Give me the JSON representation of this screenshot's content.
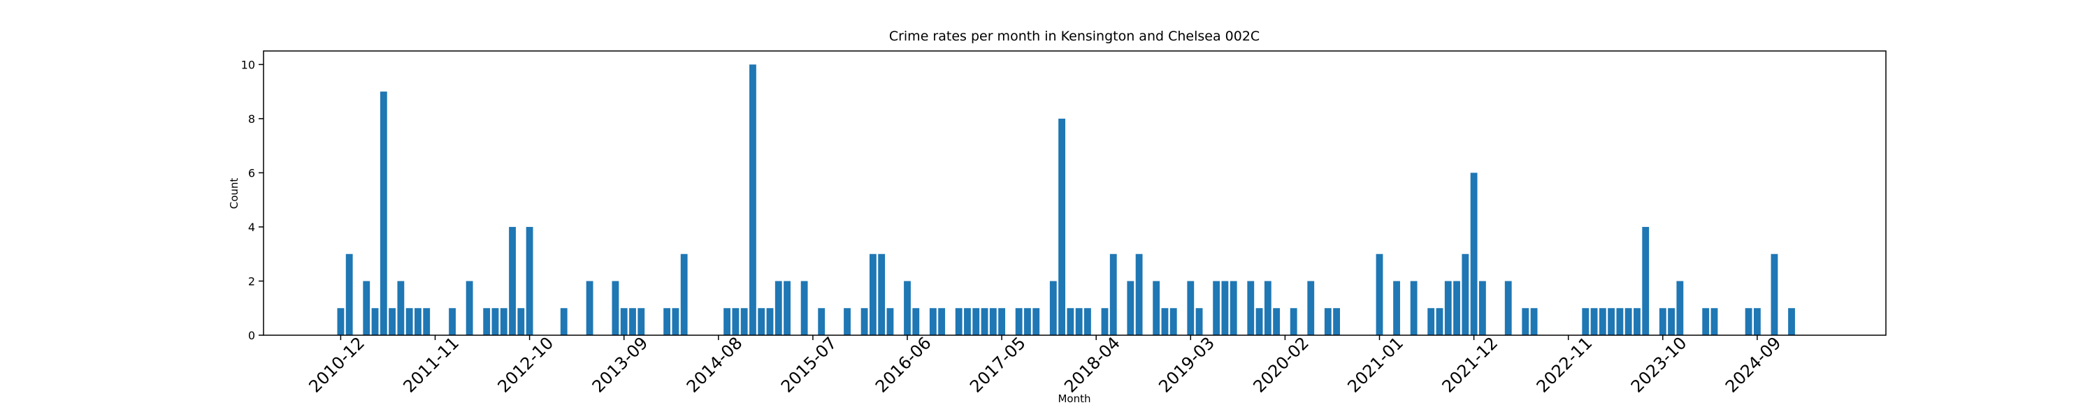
{
  "chart_data": {
    "type": "bar",
    "title": "Crime rates per month in Kensington and Chelsea 002C",
    "x_label": "Month",
    "y_label": "Count",
    "categories": [
      "2010-12",
      null,
      null,
      null,
      null,
      null,
      null,
      null,
      null,
      null,
      null,
      "2011-11",
      null,
      null,
      null,
      null,
      null,
      null,
      null,
      null,
      null,
      null,
      "2012-10",
      null,
      null,
      null,
      null,
      null,
      null,
      null,
      null,
      null,
      null,
      "2013-09",
      null,
      null,
      null,
      null,
      null,
      null,
      null,
      null,
      null,
      null,
      "2014-08",
      null,
      null,
      null,
      null,
      null,
      null,
      null,
      null,
      null,
      null,
      "2015-07",
      null,
      null,
      null,
      null,
      null,
      null,
      null,
      null,
      null,
      null,
      "2016-06",
      null,
      null,
      null,
      null,
      null,
      null,
      null,
      null,
      null,
      null,
      "2017-05",
      null,
      null,
      null,
      null,
      null,
      null,
      null,
      null,
      null,
      null,
      "2018-04",
      null,
      null,
      null,
      null,
      null,
      null,
      null,
      null,
      null,
      null,
      "2019-03",
      null,
      null,
      null,
      null,
      null,
      null,
      null,
      null,
      null,
      null,
      "2020-02",
      null,
      null,
      null,
      null,
      null,
      null,
      null,
      null,
      null,
      null,
      "2021-01",
      null,
      null,
      null,
      null,
      null,
      null,
      null,
      null,
      null,
      null,
      "2021-12",
      null,
      null,
      null,
      null,
      null,
      null,
      null,
      null,
      null,
      null,
      "2022-11",
      null,
      null,
      null,
      null,
      null,
      null,
      null,
      null,
      null,
      null,
      "2023-10",
      null,
      null,
      null,
      null,
      null,
      null,
      null,
      null,
      null,
      null,
      "2024-09",
      null,
      null,
      null,
      null,
      null,
      null
    ],
    "values": [
      1,
      3,
      0,
      2,
      1,
      9,
      1,
      2,
      1,
      1,
      1,
      0,
      0,
      1,
      0,
      2,
      0,
      1,
      1,
      1,
      4,
      1,
      4,
      0,
      0,
      0,
      1,
      0,
      0,
      2,
      0,
      0,
      2,
      1,
      1,
      1,
      0,
      0,
      1,
      1,
      3,
      0,
      0,
      0,
      0,
      1,
      1,
      1,
      10,
      1,
      1,
      2,
      2,
      0,
      2,
      0,
      1,
      0,
      0,
      1,
      0,
      1,
      3,
      3,
      1,
      0,
      2,
      1,
      0,
      1,
      1,
      0,
      1,
      1,
      1,
      1,
      1,
      1,
      0,
      1,
      1,
      1,
      0,
      2,
      8,
      1,
      1,
      1,
      0,
      1,
      3,
      0,
      2,
      3,
      0,
      2,
      1,
      1,
      0,
      2,
      1,
      0,
      2,
      2,
      2,
      0,
      2,
      1,
      2,
      1,
      0,
      1,
      0,
      2,
      0,
      1,
      1,
      0,
      0,
      0,
      0,
      3,
      0,
      2,
      0,
      2,
      0,
      1,
      1,
      2,
      2,
      3,
      6,
      2,
      0,
      0,
      2,
      0,
      1,
      1,
      0,
      0,
      0,
      0,
      0,
      1,
      1,
      1,
      1,
      1,
      1,
      1,
      4,
      0,
      1,
      1,
      2,
      0,
      0,
      1,
      1,
      0,
      0,
      0,
      1,
      1,
      0,
      3,
      0,
      1,
      0,
      0
    ],
    "color": "#1f77b4",
    "ylim": [
      0,
      10.5
    ],
    "yticks": [
      0,
      2,
      4,
      6,
      8,
      10
    ],
    "grid": false
  }
}
